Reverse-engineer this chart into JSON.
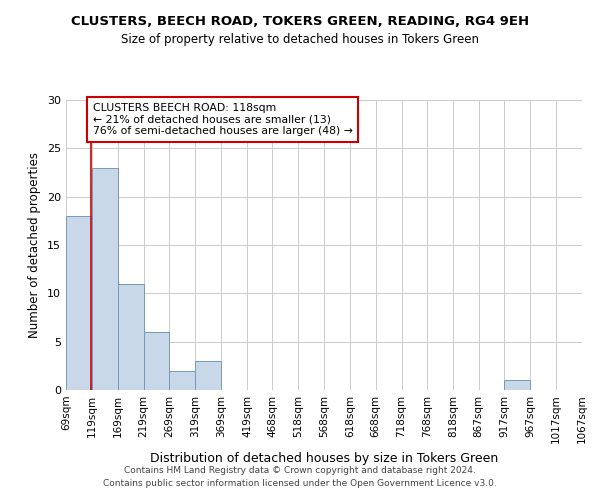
{
  "title": "CLUSTERS, BEECH ROAD, TOKERS GREEN, READING, RG4 9EH",
  "subtitle": "Size of property relative to detached houses in Tokers Green",
  "xlabel": "Distribution of detached houses by size in Tokers Green",
  "ylabel": "Number of detached properties",
  "footer_line1": "Contains HM Land Registry data © Crown copyright and database right 2024.",
  "footer_line2": "Contains public sector information licensed under the Open Government Licence v3.0.",
  "bin_edges": [
    69,
    119,
    169,
    219,
    269,
    319,
    369,
    419,
    468,
    518,
    568,
    618,
    668,
    718,
    768,
    818,
    867,
    917,
    967,
    1017,
    1067
  ],
  "bar_heights": [
    18,
    23,
    11,
    6,
    2,
    3,
    0,
    0,
    0,
    0,
    0,
    0,
    0,
    0,
    0,
    0,
    0,
    1,
    0,
    0
  ],
  "bar_color": "#c8d8e8",
  "bar_edge_color": "#7799bb",
  "grid_color": "#cccccc",
  "property_size": 118,
  "vline_color": "#cc0000",
  "annotation_text": "CLUSTERS BEECH ROAD: 118sqm\n← 21% of detached houses are smaller (13)\n76% of semi-detached houses are larger (48) →",
  "annotation_box_color": "#ffffff",
  "annotation_box_edge": "#cc0000",
  "ylim": [
    0,
    30
  ],
  "yticks": [
    0,
    5,
    10,
    15,
    20,
    25,
    30
  ],
  "tick_labels": [
    "69sqm",
    "119sqm",
    "169sqm",
    "219sqm",
    "269sqm",
    "319sqm",
    "369sqm",
    "419sqm",
    "468sqm",
    "518sqm",
    "568sqm",
    "618sqm",
    "668sqm",
    "718sqm",
    "768sqm",
    "818sqm",
    "867sqm",
    "917sqm",
    "967sqm",
    "1017sqm",
    "1067sqm"
  ]
}
